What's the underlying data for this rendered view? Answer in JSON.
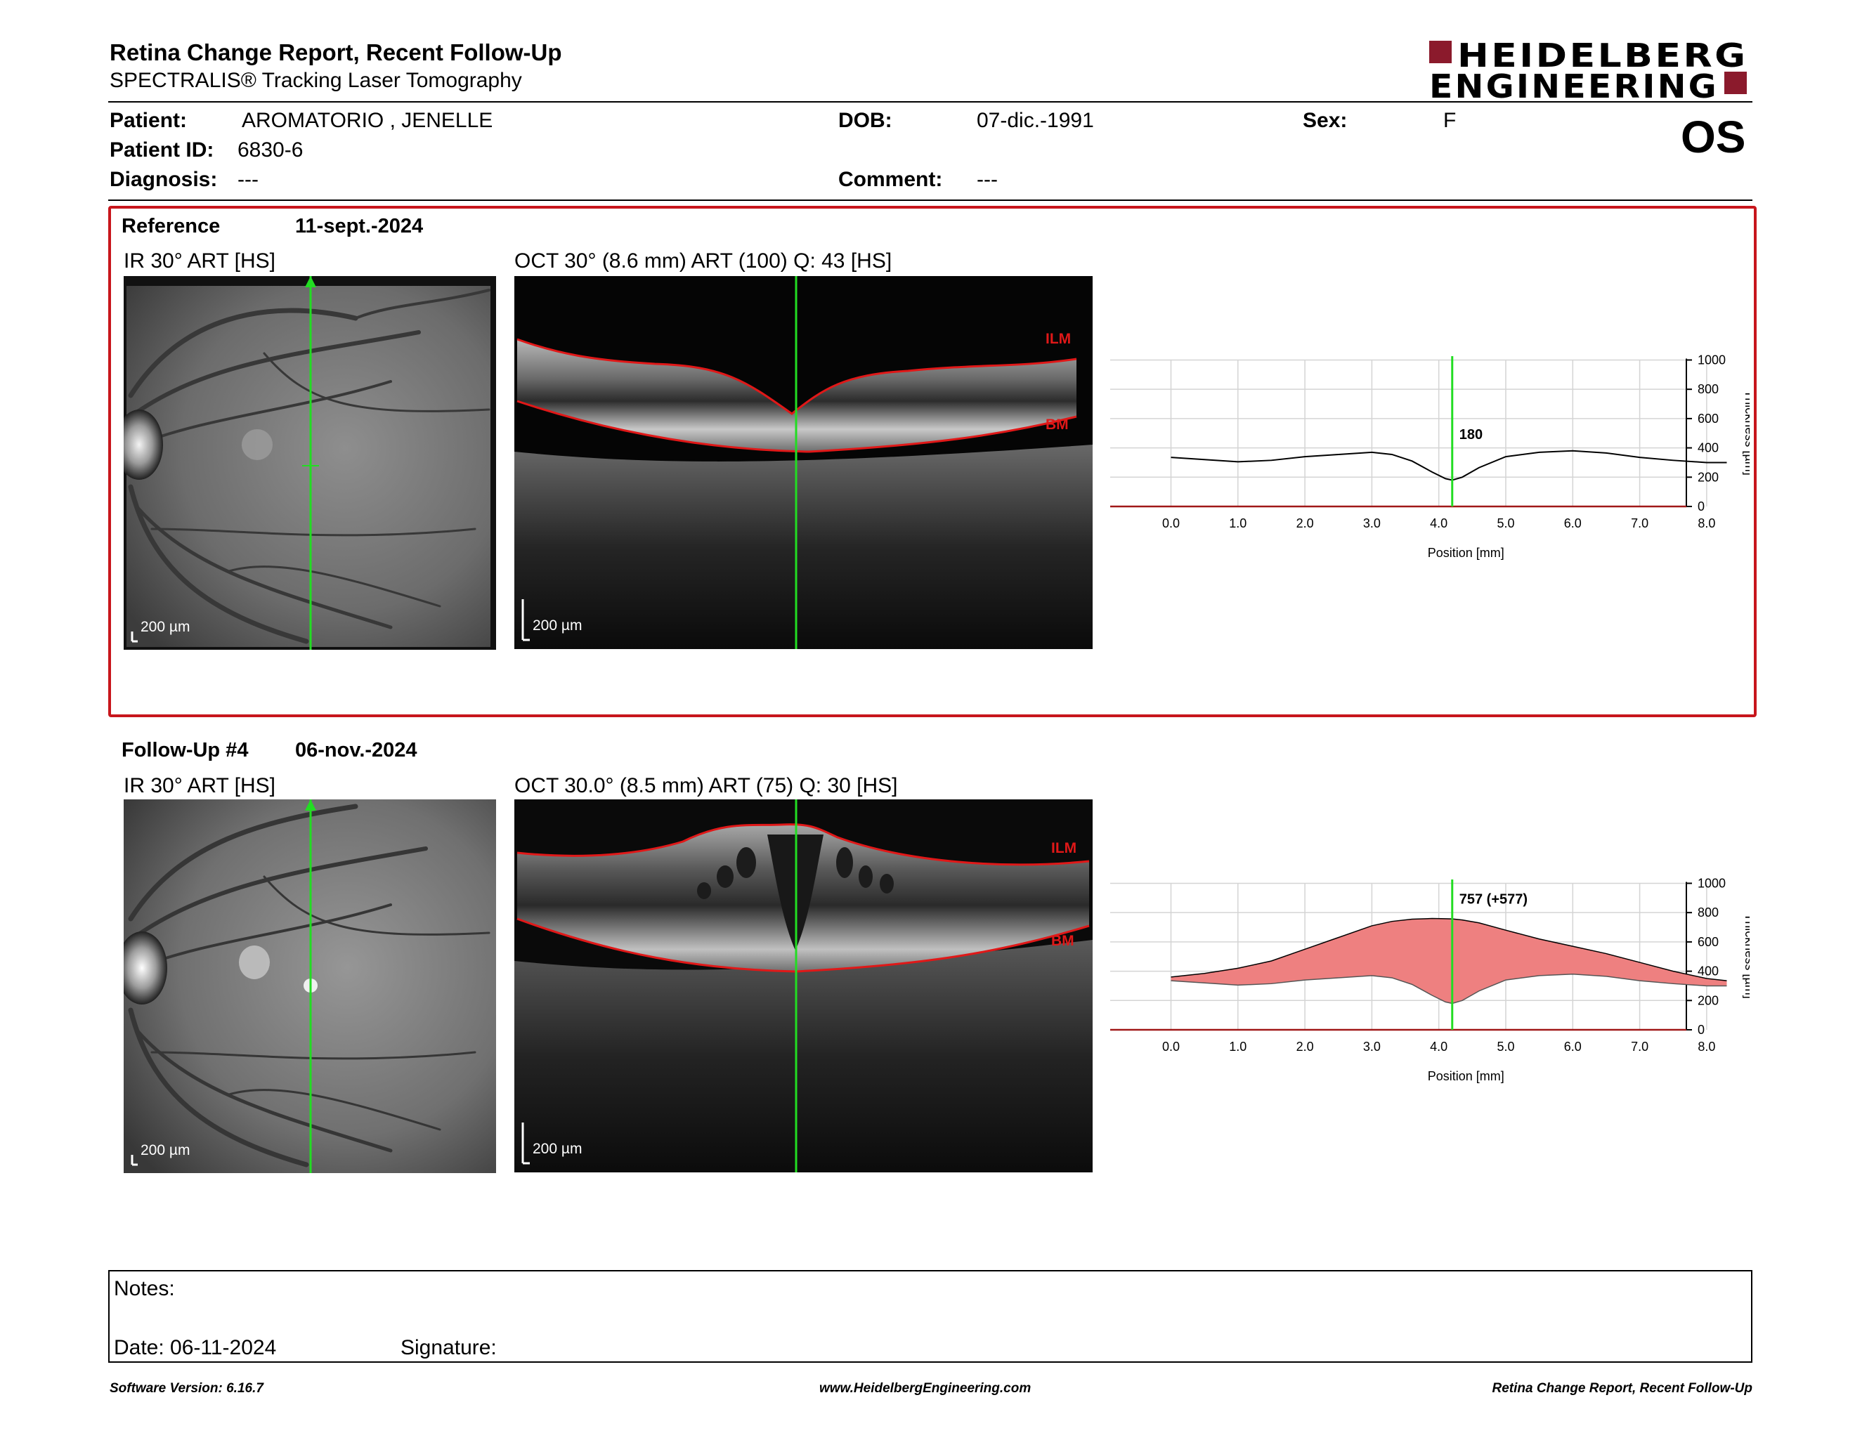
{
  "header": {
    "title": "Retina Change Report, Recent Follow-Up",
    "subtitle": "SPECTRALIS® Tracking Laser Tomography",
    "logo_line1": "HEIDELBERG",
    "logo_line2": "ENGINEERING",
    "brand_color": "#8b1a2c"
  },
  "patient": {
    "patient_label": "Patient:",
    "patient_name": "AROMATORIO , JENELLE",
    "dob_label": "DOB:",
    "dob": "07-dic.-1991",
    "sex_label": "Sex:",
    "sex": "F",
    "id_label": "Patient ID:",
    "id": "6830-6",
    "diagnosis_label": "Diagnosis:",
    "diagnosis": "---",
    "comment_label": "Comment:",
    "comment": "---",
    "eye": "OS"
  },
  "reference": {
    "label": "Reference",
    "date": "11-sept.-2024",
    "ir_label": "IR 30° ART [HS]",
    "oct_label": "OCT 30° (8.6 mm) ART (100) Q: 43 [HS]",
    "ir_scale": "200 µm",
    "oct_scale": "200 µm",
    "ilm_label": "ILM",
    "bm_label": "BM",
    "highlight_color": "#c8161c"
  },
  "followup": {
    "label": "Follow-Up #4",
    "date": "06-nov.-2024",
    "ir_label": "IR 30° ART [HS]",
    "oct_label": "OCT 30.0° (8.5 mm) ART (75) Q: 30 [HS]",
    "ir_scale": "200 µm",
    "oct_scale": "200 µm",
    "ilm_label": "ILM",
    "bm_label": "BM"
  },
  "chart_data": [
    {
      "type": "line",
      "xlabel": "Position [mm]",
      "ylabel": "Thickness [µm]",
      "xlim": [
        0,
        8.6
      ],
      "ylim": [
        0,
        1000
      ],
      "x_ticks": [
        "0.0",
        "1.0",
        "2.0",
        "3.0",
        "4.0",
        "5.0",
        "6.0",
        "7.0",
        "8.0"
      ],
      "y_ticks": [
        "0",
        "200",
        "400",
        "600",
        "800",
        "1000"
      ],
      "grid": true,
      "cursor_x": 4.2,
      "cursor_label": "180",
      "series": [
        {
          "x": [
            0.0,
            0.5,
            1.0,
            1.5,
            2.0,
            2.5,
            3.0,
            3.3,
            3.6,
            3.9,
            4.1,
            4.2,
            4.35,
            4.6,
            5.0,
            5.5,
            6.0,
            6.5,
            7.0,
            7.5,
            8.0,
            8.3
          ],
          "values": [
            335,
            320,
            305,
            315,
            340,
            355,
            370,
            355,
            310,
            235,
            190,
            180,
            200,
            265,
            340,
            370,
            380,
            365,
            335,
            315,
            300,
            300
          ]
        }
      ]
    },
    {
      "type": "area",
      "xlabel": "Position [mm]",
      "ylabel": "Thickness [µm]",
      "xlim": [
        0,
        8.6
      ],
      "ylim": [
        0,
        1000
      ],
      "x_ticks": [
        "0.0",
        "1.0",
        "2.0",
        "3.0",
        "4.0",
        "5.0",
        "6.0",
        "7.0",
        "8.0"
      ],
      "y_ticks": [
        "0",
        "200",
        "400",
        "600",
        "800",
        "1000"
      ],
      "grid": true,
      "cursor_x": 4.2,
      "cursor_label": "757 (+577)",
      "fill_color": "#ee8080",
      "series": [
        {
          "x": [
            0.0,
            0.5,
            1.0,
            1.5,
            2.0,
            2.5,
            3.0,
            3.3,
            3.6,
            3.9,
            4.1,
            4.2,
            4.35,
            4.6,
            5.0,
            5.5,
            6.0,
            6.5,
            7.0,
            7.5,
            8.0,
            8.3
          ],
          "values": [
            360,
            385,
            420,
            470,
            550,
            630,
            710,
            740,
            755,
            760,
            758,
            757,
            750,
            730,
            680,
            620,
            570,
            520,
            460,
            400,
            350,
            335
          ]
        },
        {
          "x": [
            0.0,
            0.5,
            1.0,
            1.5,
            2.0,
            2.5,
            3.0,
            3.3,
            3.6,
            3.9,
            4.1,
            4.2,
            4.35,
            4.6,
            5.0,
            5.5,
            6.0,
            6.5,
            7.0,
            7.5,
            8.0,
            8.3
          ],
          "values": [
            335,
            320,
            305,
            315,
            340,
            355,
            370,
            355,
            310,
            235,
            190,
            180,
            200,
            265,
            340,
            370,
            380,
            365,
            335,
            315,
            300,
            300
          ]
        }
      ]
    }
  ],
  "notes": {
    "notes_label": "Notes:",
    "date_text": "Date: 06-11-2024",
    "signature_label": "Signature:"
  },
  "footer": {
    "software": "Software Version: 6.16.7",
    "website": "www.HeidelbergEngineering.com",
    "report_name": "Retina Change Report, Recent Follow-Up"
  }
}
